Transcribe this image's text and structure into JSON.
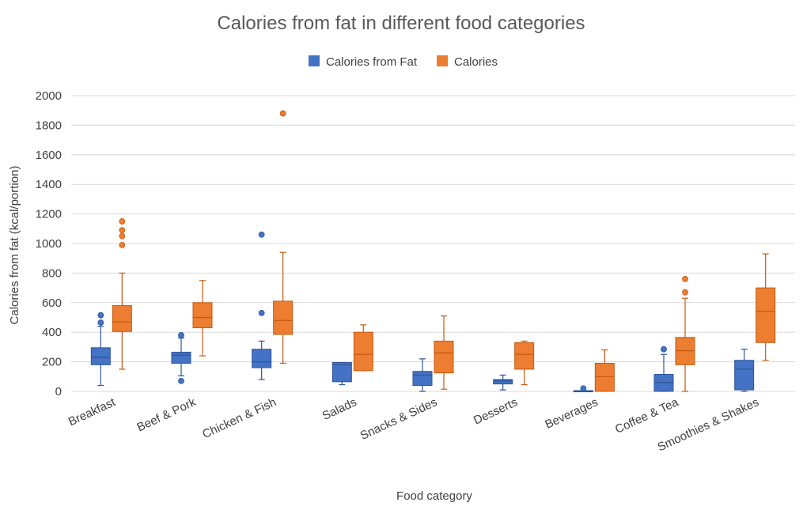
{
  "chart_data": {
    "type": "box",
    "title": "Calories from fat in different food categories",
    "xlabel": "Food category",
    "ylabel": "Calories from fat (kcal/portion)",
    "ylim": [
      0,
      2000
    ],
    "yticks": [
      0,
      200,
      400,
      600,
      800,
      1000,
      1200,
      1400,
      1600,
      1800,
      2000
    ],
    "grid": true,
    "legend_position": "top-center",
    "categories": [
      "Breakfast",
      "Beef & Pork",
      "Chicken & Fish",
      "Salads",
      "Snacks & Sides",
      "Desserts",
      "Beverages",
      "Coffee & Tea",
      "Smoothies & Shakes"
    ],
    "series": [
      {
        "name": "Calories from Fat",
        "color": "#4472C4",
        "boxes": [
          {
            "min": 40,
            "q1": 180,
            "median": 230,
            "q3": 295,
            "max": 440,
            "outliers": [
              465,
              515
            ]
          },
          {
            "min": 105,
            "q1": 190,
            "median": 245,
            "q3": 265,
            "max": 360,
            "outliers": [
              70,
              380
            ]
          },
          {
            "min": 80,
            "q1": 160,
            "median": 200,
            "q3": 285,
            "max": 340,
            "outliers": [
              530,
              1060
            ]
          },
          {
            "min": 45,
            "q1": 65,
            "median": 180,
            "q3": 195,
            "max": 195,
            "outliers": []
          },
          {
            "min": 0,
            "q1": 40,
            "median": 110,
            "q3": 135,
            "max": 220,
            "outliers": []
          },
          {
            "min": 10,
            "q1": 50,
            "median": 70,
            "q3": 80,
            "max": 110,
            "outliers": []
          },
          {
            "min": 0,
            "q1": 0,
            "median": 0,
            "q3": 5,
            "max": 5,
            "outliers": [
              20
            ]
          },
          {
            "min": 0,
            "q1": 0,
            "median": 60,
            "q3": 115,
            "max": 250,
            "outliers": [
              285
            ]
          },
          {
            "min": 0,
            "q1": 10,
            "median": 150,
            "q3": 210,
            "max": 285,
            "outliers": []
          }
        ]
      },
      {
        "name": "Calories",
        "color": "#ED7D31",
        "boxes": [
          {
            "min": 150,
            "q1": 405,
            "median": 470,
            "q3": 580,
            "max": 800,
            "outliers": [
              990,
              1050,
              1090,
              1150
            ]
          },
          {
            "min": 240,
            "q1": 430,
            "median": 500,
            "q3": 600,
            "max": 750,
            "outliers": []
          },
          {
            "min": 190,
            "q1": 385,
            "median": 480,
            "q3": 610,
            "max": 940,
            "outliers": [
              1880
            ]
          },
          {
            "min": 140,
            "q1": 140,
            "median": 250,
            "q3": 400,
            "max": 450,
            "outliers": []
          },
          {
            "min": 15,
            "q1": 125,
            "median": 260,
            "q3": 340,
            "max": 510,
            "outliers": []
          },
          {
            "min": 45,
            "q1": 150,
            "median": 250,
            "q3": 330,
            "max": 340,
            "outliers": []
          },
          {
            "min": 0,
            "q1": 0,
            "median": 100,
            "q3": 190,
            "max": 280,
            "outliers": []
          },
          {
            "min": 0,
            "q1": 180,
            "median": 275,
            "q3": 365,
            "max": 630,
            "outliers": [
              670,
              760
            ]
          },
          {
            "min": 210,
            "q1": 330,
            "median": 540,
            "q3": 700,
            "max": 930,
            "outliers": []
          }
        ]
      }
    ]
  }
}
